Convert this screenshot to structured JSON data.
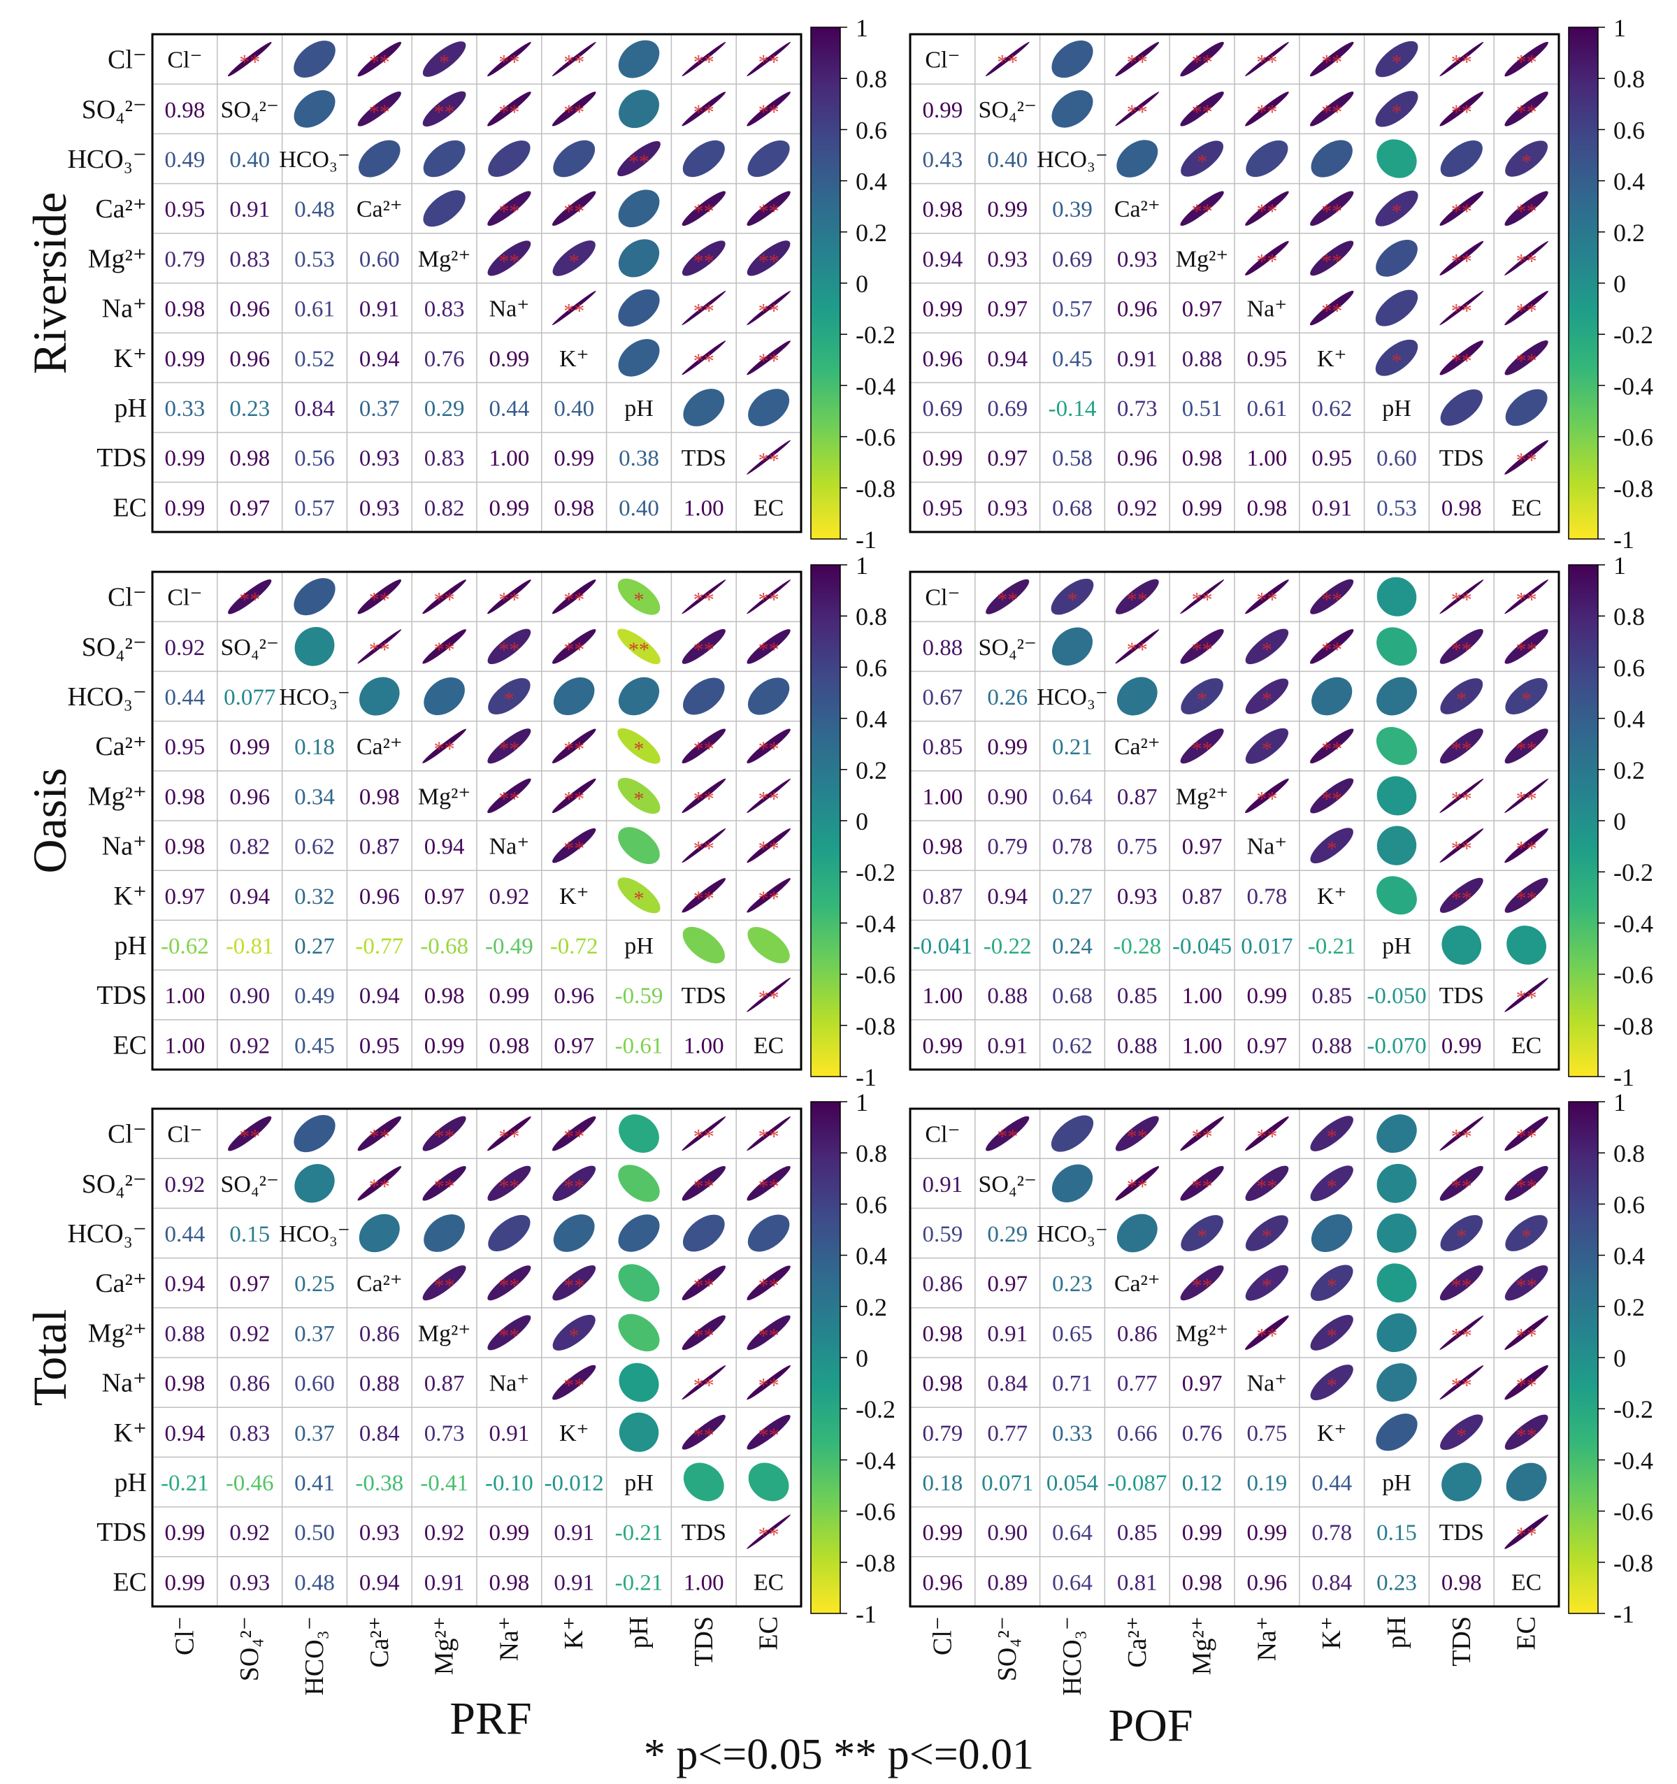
{
  "variables": [
    "Cl⁻",
    "SO₄²⁻",
    "HCO₃⁻",
    "Ca²⁺",
    "Mg²⁺",
    "Na⁺",
    "K⁺",
    "pH",
    "TDS",
    "EC"
  ],
  "row_groups": [
    "Riverside",
    "Oasis",
    "Total"
  ],
  "col_groups": [
    "PRF",
    "POF"
  ],
  "legend_text": "*  p<=0.05   **  p<=0.01",
  "colorbar_ticks": [
    "1",
    "0.8",
    "0.6",
    "0.4",
    "0.2",
    "0",
    "-0.2",
    "-0.4",
    "-0.6",
    "-0.8",
    "-1"
  ],
  "colors": {
    "viridis_low": "#fde725",
    "viridis_mid": "#21918c",
    "viridis_high": "#440154",
    "star": "#d62728",
    "grid": "#bfbfbf",
    "frame": "#000000"
  },
  "chart_data": [
    {
      "type": "heatmap",
      "group": "Riverside",
      "fraction": "PRF",
      "label_texts": [
        "0.98",
        "0.49",
        "0.40",
        "0.95",
        "0.91",
        "0.48",
        "0.79",
        "0.83",
        "0.53",
        "0.60",
        "0.98",
        "0.96",
        "0.61",
        "0.91",
        "0.83",
        "0.99",
        "0.96",
        "0.52",
        "0.94",
        "0.76",
        "0.99",
        "0.33",
        "0.23",
        "0.84",
        "0.37",
        "0.29",
        "0.44",
        "0.40",
        "0.99",
        "0.98",
        "0.56",
        "0.93",
        "0.83",
        "1.00",
        "0.99",
        "0.38",
        "0.99",
        "0.97",
        "0.57",
        "0.93",
        "0.82",
        "0.99",
        "0.98",
        "0.40",
        "1.00"
      ],
      "lower_values": [
        0.98,
        0.49,
        0.4,
        0.95,
        0.91,
        0.48,
        0.79,
        0.83,
        0.53,
        0.6,
        0.98,
        0.96,
        0.61,
        0.91,
        0.83,
        0.99,
        0.96,
        0.52,
        0.94,
        0.76,
        0.99,
        0.33,
        0.23,
        0.84,
        0.37,
        0.29,
        0.44,
        0.4,
        0.99,
        0.98,
        0.56,
        0.93,
        0.83,
        1.0,
        0.99,
        0.38,
        0.99,
        0.97,
        0.57,
        0.93,
        0.82,
        0.99,
        0.98,
        0.4,
        1.0
      ],
      "stars": [
        "**",
        "",
        "**",
        "",
        "**",
        "",
        "*",
        "*",
        "**",
        "",
        "**",
        "*",
        "*",
        "*",
        "**",
        "**",
        "*",
        "*",
        "**",
        "",
        "**",
        "",
        "*",
        "**",
        "",
        "**",
        "",
        "**",
        "",
        "**",
        "",
        "**",
        "",
        "*",
        "**",
        "**",
        "**",
        "**",
        "*",
        "**",
        "*",
        "**",
        "**",
        "**",
        "*",
        "**",
        "**",
        "**",
        "**",
        "**",
        "**",
        "**",
        "**",
        "**",
        "**",
        "**",
        "**",
        "**",
        "**",
        "**",
        "**",
        "**",
        "**",
        "**",
        "**",
        "**",
        "**",
        "**",
        "",
        "",
        "**",
        "**",
        "**",
        "**",
        "**",
        "**",
        "**",
        "**",
        "**",
        "*",
        "**",
        "**",
        "**",
        "**",
        "**",
        "**",
        "",
        "",
        "**"
      ],
      "xlim": [
        -1,
        1
      ],
      "legend": "right"
    },
    {
      "type": "heatmap",
      "group": "Riverside",
      "fraction": "POF",
      "label_texts": [
        "0.99",
        "0.43",
        "0.40",
        "0.98",
        "0.99",
        "0.39",
        "0.94",
        "0.93",
        "0.69",
        "0.93",
        "0.99",
        "0.97",
        "0.57",
        "0.96",
        "0.97",
        "0.96",
        "0.94",
        "0.45",
        "0.91",
        "0.88",
        "0.95",
        "0.69",
        "0.69",
        "-0.14",
        "0.73",
        "0.51",
        "0.61",
        "0.62",
        "0.99",
        "0.97",
        "0.58",
        "0.96",
        "0.98",
        "1.00",
        "0.95",
        "0.60",
        "0.95",
        "0.93",
        "0.68",
        "0.92",
        "0.99",
        "0.98",
        "0.91",
        "0.53",
        "0.98"
      ],
      "lower_values": [
        0.99,
        0.43,
        0.4,
        0.98,
        0.99,
        0.39,
        0.94,
        0.93,
        0.69,
        0.93,
        0.99,
        0.97,
        0.57,
        0.96,
        0.97,
        0.96,
        0.94,
        0.45,
        0.91,
        0.88,
        0.95,
        0.69,
        0.69,
        -0.14,
        0.73,
        0.51,
        0.61,
        0.62,
        0.99,
        0.97,
        0.58,
        0.96,
        0.98,
        1.0,
        0.95,
        0.6,
        0.95,
        0.93,
        0.68,
        0.92,
        0.99,
        0.98,
        0.91,
        0.53,
        0.98
      ],
      "xlim": [
        -1,
        1
      ],
      "legend": "right"
    },
    {
      "type": "heatmap",
      "group": "Oasis",
      "fraction": "PRF",
      "label_texts": [
        "0.92",
        "0.44",
        "0.077",
        "0.95",
        "0.99",
        "0.18",
        "0.98",
        "0.96",
        "0.34",
        "0.98",
        "0.98",
        "0.82",
        "0.62",
        "0.87",
        "0.94",
        "0.97",
        "0.94",
        "0.32",
        "0.96",
        "0.97",
        "0.92",
        "-0.62",
        "-0.81",
        "0.27",
        "-0.77",
        "-0.68",
        "-0.49",
        "-0.72",
        "1.00",
        "0.90",
        "0.49",
        "0.94",
        "0.98",
        "0.99",
        "0.96",
        "-0.59",
        "1.00",
        "0.92",
        "0.45",
        "0.95",
        "0.99",
        "0.98",
        "0.97",
        "-0.61",
        "1.00"
      ],
      "lower_values": [
        0.92,
        0.44,
        0.077,
        0.95,
        0.99,
        0.18,
        0.98,
        0.96,
        0.34,
        0.98,
        0.98,
        0.82,
        0.62,
        0.87,
        0.94,
        0.97,
        0.94,
        0.32,
        0.96,
        0.97,
        0.92,
        -0.62,
        -0.81,
        0.27,
        -0.77,
        -0.68,
        -0.49,
        -0.72,
        1.0,
        0.9,
        0.49,
        0.94,
        0.98,
        0.99,
        0.96,
        -0.59,
        1.0,
        0.92,
        0.45,
        0.95,
        0.99,
        0.98,
        0.97,
        -0.61,
        1.0
      ],
      "xlim": [
        -1,
        1
      ],
      "legend": "right"
    },
    {
      "type": "heatmap",
      "group": "Oasis",
      "fraction": "POF",
      "label_texts": [
        "0.88",
        "0.67",
        "0.26",
        "0.85",
        "0.99",
        "0.21",
        "1.00",
        "0.90",
        "0.64",
        "0.87",
        "0.98",
        "0.79",
        "0.78",
        "0.75",
        "0.97",
        "0.87",
        "0.94",
        "0.27",
        "0.93",
        "0.87",
        "0.78",
        "-0.041",
        "-0.22",
        "0.24",
        "-0.28",
        "-0.045",
        "0.017",
        "-0.21",
        "1.00",
        "0.88",
        "0.68",
        "0.85",
        "1.00",
        "0.99",
        "0.85",
        "-0.050",
        "0.99",
        "0.91",
        "0.62",
        "0.88",
        "1.00",
        "0.97",
        "0.88",
        "-0.070",
        "0.99"
      ],
      "lower_values": [
        0.88,
        0.67,
        0.26,
        0.85,
        0.99,
        0.21,
        1.0,
        0.9,
        0.64,
        0.87,
        0.98,
        0.79,
        0.78,
        0.75,
        0.97,
        0.87,
        0.94,
        0.27,
        0.93,
        0.87,
        0.78,
        -0.041,
        -0.22,
        0.24,
        -0.28,
        -0.045,
        0.017,
        -0.21,
        1.0,
        0.88,
        0.68,
        0.85,
        1.0,
        0.99,
        0.85,
        -0.05,
        0.99,
        0.91,
        0.62,
        0.88,
        1.0,
        0.97,
        0.88,
        -0.07,
        0.99
      ],
      "xlim": [
        -1,
        1
      ],
      "legend": "right"
    },
    {
      "type": "heatmap",
      "group": "Total",
      "fraction": "PRF",
      "label_texts": [
        "0.92",
        "0.44",
        "0.15",
        "0.94",
        "0.97",
        "0.25",
        "0.88",
        "0.92",
        "0.37",
        "0.86",
        "0.98",
        "0.86",
        "0.60",
        "0.88",
        "0.87",
        "0.94",
        "0.83",
        "0.37",
        "0.84",
        "0.73",
        "0.91",
        "-0.21",
        "-0.46",
        "0.41",
        "-0.38",
        "-0.41",
        "-0.10",
        "-0.012",
        "0.99",
        "0.92",
        "0.50",
        "0.93",
        "0.92",
        "0.99",
        "0.91",
        "-0.21",
        "0.99",
        "0.93",
        "0.48",
        "0.94",
        "0.91",
        "0.98",
        "0.91",
        "-0.21",
        "1.00"
      ],
      "lower_values": [
        0.92,
        0.44,
        0.15,
        0.94,
        0.97,
        0.25,
        0.88,
        0.92,
        0.37,
        0.86,
        0.98,
        0.86,
        0.6,
        0.88,
        0.87,
        0.94,
        0.83,
        0.37,
        0.84,
        0.73,
        0.91,
        -0.21,
        -0.46,
        0.41,
        -0.38,
        -0.41,
        -0.1,
        -0.012,
        0.99,
        0.92,
        0.5,
        0.93,
        0.92,
        0.99,
        0.91,
        -0.21,
        0.99,
        0.93,
        0.48,
        0.94,
        0.91,
        0.98,
        0.91,
        -0.21,
        1.0
      ],
      "xlim": [
        -1,
        1
      ],
      "legend": "right"
    },
    {
      "type": "heatmap",
      "group": "Total",
      "fraction": "POF",
      "label_texts": [
        "0.91",
        "0.59",
        "0.29",
        "0.86",
        "0.97",
        "0.23",
        "0.98",
        "0.91",
        "0.65",
        "0.86",
        "0.98",
        "0.84",
        "0.71",
        "0.77",
        "0.97",
        "0.79",
        "0.77",
        "0.33",
        "0.66",
        "0.76",
        "0.75",
        "0.18",
        "0.071",
        "0.054",
        "-0.087",
        "0.12",
        "0.19",
        "0.44",
        "0.99",
        "0.90",
        "0.64",
        "0.85",
        "0.99",
        "0.99",
        "0.78",
        "0.15",
        "0.96",
        "0.89",
        "0.64",
        "0.81",
        "0.98",
        "0.96",
        "0.84",
        "0.23",
        "0.98"
      ],
      "lower_values": [
        0.91,
        0.59,
        0.29,
        0.86,
        0.97,
        0.23,
        0.98,
        0.91,
        0.65,
        0.86,
        0.98,
        0.84,
        0.71,
        0.77,
        0.97,
        0.79,
        0.77,
        0.33,
        0.66,
        0.76,
        0.75,
        0.18,
        0.071,
        0.054,
        -0.087,
        0.12,
        0.19,
        0.44,
        0.99,
        0.9,
        0.64,
        0.85,
        0.99,
        0.99,
        0.78,
        0.15,
        0.96,
        0.89,
        0.64,
        0.81,
        0.98,
        0.96,
        0.84,
        0.23,
        0.98
      ],
      "xlim": [
        -1,
        1
      ],
      "legend": "right"
    }
  ]
}
